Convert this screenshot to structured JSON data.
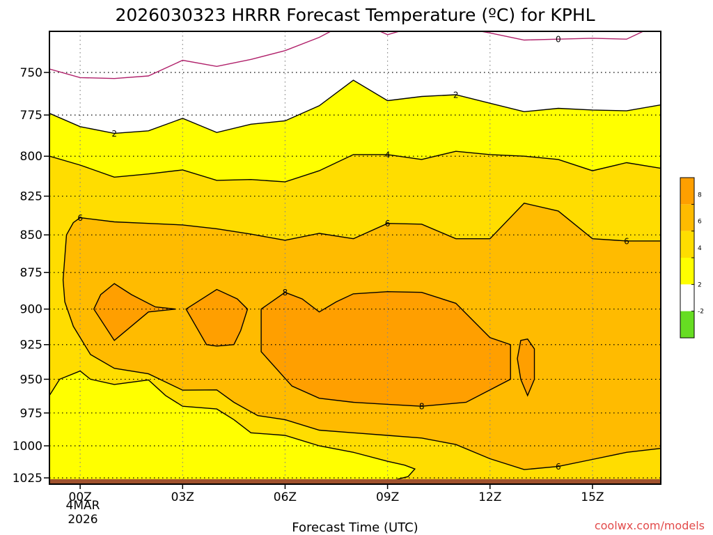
{
  "chart_data": {
    "type": "heatmap",
    "title": "2026030323 HRRR Forecast Temperature (ºC) for KPHL",
    "xlabel": "Forecast Time (UTC)",
    "ylabel": "",
    "y_scale": "log-pressure",
    "y_inverted": true,
    "ylim": [
      1030,
      723
    ],
    "xlim": [
      -0.9,
      17
    ],
    "x_ticks": [
      {
        "value": 0,
        "label": "00Z"
      },
      {
        "value": 3,
        "label": "03Z"
      },
      {
        "value": 6,
        "label": "06Z"
      },
      {
        "value": 9,
        "label": "09Z"
      },
      {
        "value": 12,
        "label": "12Z"
      },
      {
        "value": 15,
        "label": "15Z"
      }
    ],
    "x_sublabels": [
      "4MAR",
      "2026"
    ],
    "y_ticks": [
      750,
      775,
      800,
      825,
      850,
      875,
      900,
      925,
      950,
      975,
      1000,
      1025
    ],
    "grid": true,
    "colorbar": {
      "placement": "right",
      "levels": [
        -4,
        -2,
        0,
        2,
        4,
        6,
        8,
        10
      ],
      "labels": [
        "-2",
        "2",
        "4",
        "6",
        "8"
      ],
      "colors": [
        "#66dd22",
        "#ffffff",
        "#ffff00",
        "#ffdd00",
        "#ffbb00",
        "#ff9f00"
      ]
    },
    "colors": {
      "lt0": "#ffffff",
      "c0_2": "#ffffff",
      "c2_4": "#ffff00",
      "c4_6": "#ffdd00",
      "c6_8": "#ffbb00",
      "c8_10": "#ff9f00",
      "ground": "#a0522d",
      "zero_line": "#b0206a"
    },
    "contours": [
      {
        "level": 0,
        "label": "0",
        "points": [
          [
            -0.9,
            748
          ],
          [
            0,
            753
          ],
          [
            1,
            753.5
          ],
          [
            2,
            752
          ],
          [
            3,
            743
          ],
          [
            4,
            746.5
          ],
          [
            5,
            742.5
          ],
          [
            6,
            737.5
          ],
          [
            7,
            730
          ],
          [
            8,
            720
          ],
          [
            9,
            728.5
          ],
          [
            10,
            723
          ],
          [
            11,
            724
          ],
          [
            12,
            727.5
          ],
          [
            13,
            731.5
          ],
          [
            14,
            731
          ],
          [
            15,
            730.5
          ],
          [
            16,
            731
          ],
          [
            17,
            722
          ]
        ]
      },
      {
        "level": 2,
        "label": "2",
        "points": [
          [
            -0.9,
            774
          ],
          [
            0,
            782
          ],
          [
            1,
            786
          ],
          [
            2,
            784.5
          ],
          [
            3,
            777
          ],
          [
            4,
            785.5
          ],
          [
            5,
            780.5
          ],
          [
            6,
            778.5
          ],
          [
            7,
            769.5
          ],
          [
            8,
            754.5
          ],
          [
            9,
            766.5
          ],
          [
            10,
            764
          ],
          [
            11,
            763
          ],
          [
            12,
            768
          ],
          [
            13,
            773
          ],
          [
            14,
            771
          ],
          [
            15,
            772
          ],
          [
            16,
            772.5
          ],
          [
            17,
            769
          ]
        ]
      },
      {
        "level": 4,
        "label": "4",
        "points": [
          [
            -0.9,
            800
          ],
          [
            0,
            805.5
          ],
          [
            1,
            813
          ],
          [
            2,
            811
          ],
          [
            3,
            808.5
          ],
          [
            4,
            815
          ],
          [
            5,
            814.5
          ],
          [
            6,
            816
          ],
          [
            7,
            809
          ],
          [
            8,
            799
          ],
          [
            9,
            799
          ],
          [
            10,
            802
          ],
          [
            11,
            797
          ],
          [
            12,
            799
          ],
          [
            13,
            800
          ],
          [
            14,
            802
          ],
          [
            15,
            809
          ],
          [
            16,
            804
          ],
          [
            17,
            807.5
          ]
        ]
      },
      {
        "level": 6,
        "label": "6",
        "closed": true,
        "points": [
          [
            -0.5,
            880
          ],
          [
            -0.4,
            850
          ],
          [
            -0.2,
            842
          ],
          [
            0,
            838.8
          ],
          [
            1,
            841.5
          ],
          [
            2,
            842.5
          ],
          [
            3,
            843.5
          ],
          [
            4,
            846
          ],
          [
            5,
            849.5
          ],
          [
            6,
            853.5
          ],
          [
            7,
            849
          ],
          [
            8,
            852.5
          ],
          [
            9,
            842.5
          ],
          [
            10,
            843
          ],
          [
            11,
            852.5
          ],
          [
            12,
            852.5
          ],
          [
            13,
            829.5
          ],
          [
            14,
            834.5
          ],
          [
            15,
            852.5
          ],
          [
            16,
            854
          ],
          [
            17,
            854
          ],
          [
            17,
            1002
          ],
          [
            16,
            1005
          ],
          [
            15,
            1010.5
          ],
          [
            14,
            1016
          ],
          [
            13,
            1018.5
          ],
          [
            12,
            1010
          ],
          [
            11,
            999
          ],
          [
            10,
            994
          ],
          [
            9,
            992
          ],
          [
            8,
            990
          ],
          [
            7,
            988
          ],
          [
            6,
            980
          ],
          [
            5.2,
            977
          ],
          [
            4.5,
            967
          ],
          [
            4,
            957.8
          ],
          [
            3,
            958
          ],
          [
            2,
            946
          ],
          [
            1,
            942
          ],
          [
            0.3,
            932
          ],
          [
            -0.2,
            912
          ],
          [
            -0.45,
            895
          ]
        ]
      },
      {
        "level": 6,
        "label": "",
        "points": [
          [
            -0.9,
            962
          ],
          [
            -0.6,
            950
          ],
          [
            0,
            944
          ],
          [
            0.3,
            950
          ],
          [
            1,
            953.8
          ],
          [
            2,
            950.5
          ],
          [
            2.5,
            962
          ],
          [
            3,
            970
          ],
          [
            4,
            972
          ],
          [
            4.5,
            980
          ],
          [
            5,
            990
          ],
          [
            6,
            992
          ],
          [
            7,
            1000
          ],
          [
            8,
            1005
          ],
          [
            9,
            1012
          ],
          [
            9.5,
            1015
          ],
          [
            9.8,
            1018
          ],
          [
            9.6,
            1024
          ],
          [
            9,
            1028
          ],
          [
            8,
            1030
          ],
          [
            -0.9,
            1030
          ]
        ]
      },
      {
        "level": 8,
        "label": "",
        "closed": true,
        "points": [
          [
            0.4,
            900
          ],
          [
            0.6,
            890
          ],
          [
            1,
            882.5
          ],
          [
            1.5,
            890
          ],
          [
            2.2,
            898.5
          ],
          [
            2.8,
            900
          ],
          [
            2,
            902
          ],
          [
            1,
            922
          ]
        ]
      },
      {
        "level": 8,
        "label": "",
        "closed": true,
        "points": [
          [
            3.1,
            900
          ],
          [
            4,
            886.5
          ],
          [
            4.6,
            893
          ],
          [
            4.9,
            900
          ],
          [
            4.7,
            915
          ],
          [
            4.5,
            925
          ],
          [
            4,
            926
          ],
          [
            3.7,
            925
          ]
        ]
      },
      {
        "level": 8,
        "label": "8",
        "closed": true,
        "points": [
          [
            5.3,
            900
          ],
          [
            6,
            888.5
          ],
          [
            6.5,
            893
          ],
          [
            7,
            902
          ],
          [
            7.5,
            895
          ],
          [
            8,
            889.5
          ],
          [
            9,
            888
          ],
          [
            10,
            888.5
          ],
          [
            11,
            896
          ],
          [
            12,
            920
          ],
          [
            12.6,
            925
          ],
          [
            12.6,
            950
          ],
          [
            11.3,
            967
          ],
          [
            10,
            970
          ],
          [
            9,
            968.5
          ],
          [
            8,
            967
          ],
          [
            7,
            964
          ],
          [
            6.2,
            955
          ],
          [
            5.3,
            930
          ]
        ]
      },
      {
        "level": 8,
        "label": "",
        "closed": true,
        "points": [
          [
            12.9,
            922
          ],
          [
            13.1,
            921
          ],
          [
            13.3,
            928
          ],
          [
            13.3,
            950
          ],
          [
            13.1,
            962
          ],
          [
            12.9,
            950
          ],
          [
            12.8,
            935
          ]
        ]
      }
    ],
    "contour_labels": [
      {
        "text": "0",
        "x": 14,
        "y": 731
      },
      {
        "text": "2",
        "x": 1,
        "y": 786
      },
      {
        "text": "2",
        "x": 11,
        "y": 763
      },
      {
        "text": "4",
        "x": 9,
        "y": 799
      },
      {
        "text": "6",
        "x": 0,
        "y": 838.8
      },
      {
        "text": "6",
        "x": 9,
        "y": 842.5
      },
      {
        "text": "6",
        "x": 16,
        "y": 854
      },
      {
        "text": "6",
        "x": 14,
        "y": 1016
      },
      {
        "text": "8",
        "x": 6,
        "y": 888.5
      },
      {
        "text": "8",
        "x": 10,
        "y": 970
      }
    ]
  },
  "credit": "coolwx.com/models"
}
